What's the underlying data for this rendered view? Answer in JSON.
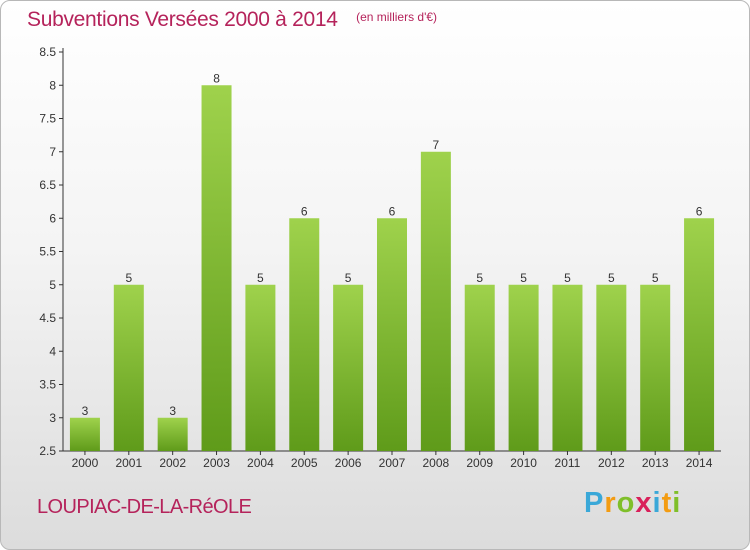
{
  "chart_data": {
    "type": "bar",
    "title": "Subventions Versées 2000 à 2014",
    "unit": "(en milliers d'€)",
    "categories": [
      "2000",
      "2001",
      "2002",
      "2003",
      "2004",
      "2005",
      "2006",
      "2007",
      "2008",
      "2009",
      "2010",
      "2011",
      "2012",
      "2013",
      "2014"
    ],
    "values": [
      3,
      5,
      3,
      8,
      5,
      6,
      5,
      6,
      7,
      5,
      5,
      5,
      5,
      5,
      6
    ],
    "ylim": [
      2.5,
      8.5
    ],
    "yticks": [
      2.5,
      3,
      3.5,
      4,
      4.5,
      5,
      5.5,
      6,
      6.5,
      7,
      7.5,
      8,
      8.5
    ],
    "grid": false,
    "colors": {
      "bar_top": "#9fd24c",
      "bar_bottom": "#5f9b1a",
      "text": "#b5235b"
    }
  },
  "footer": {
    "commune": "LOUPIAC-DE-LA-RéOLE",
    "logo": "Proxiti"
  }
}
